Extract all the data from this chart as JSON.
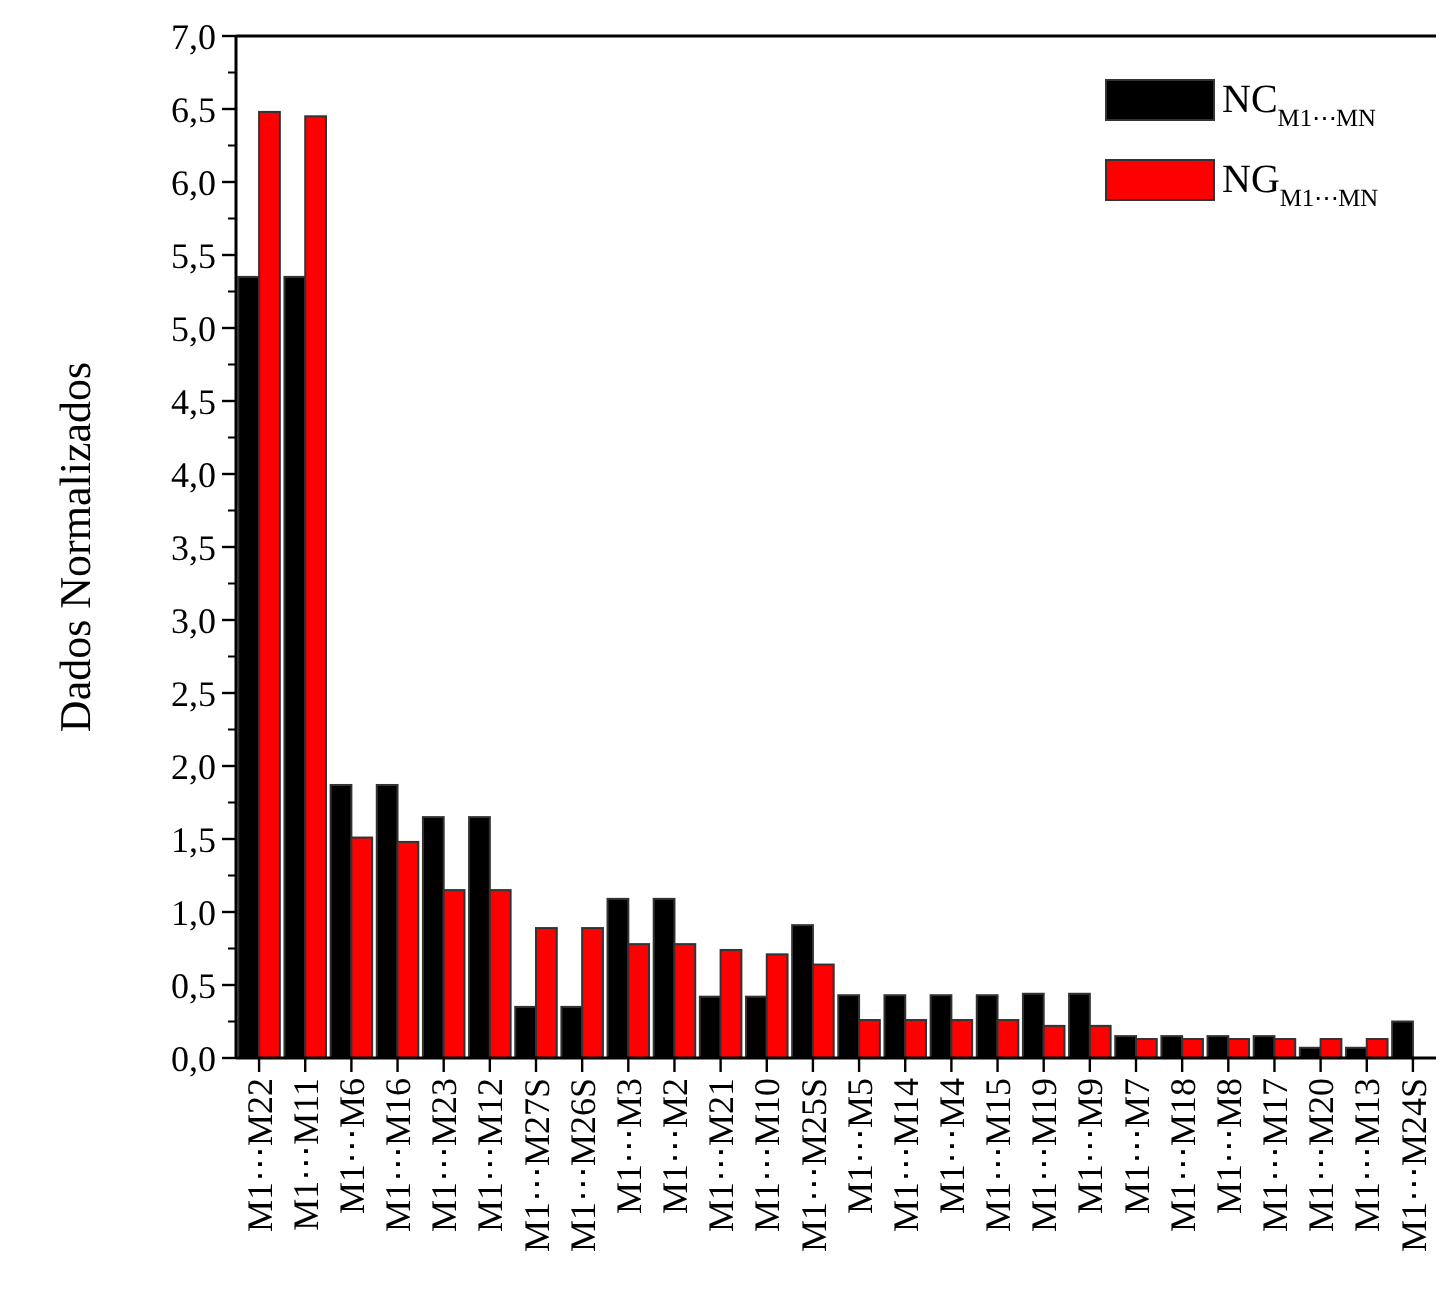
{
  "chart_data": {
    "type": "bar",
    "ylabel": "Dados Normalizados",
    "categories": [
      "M1⋯M22",
      "M1⋯M11",
      "M1⋯M6",
      "M1⋯M16",
      "M1⋯M23",
      "M1⋯M12",
      "M1⋯M27S",
      "M1⋯M26S",
      "M1⋯M3",
      "M1⋯M2",
      "M1⋯M21",
      "M1⋯M10",
      "M1⋯M25S",
      "M1⋯M5",
      "M1⋯M14",
      "M1⋯M4",
      "M1⋯M15",
      "M1⋯M19",
      "M1⋯M9",
      "M1⋯M7",
      "M1⋯M18",
      "M1⋯M8",
      "M1⋯M17",
      "M1⋯M20",
      "M1⋯M13",
      "M1⋯M24S"
    ],
    "series": [
      {
        "name": "NC$_{M1⋯MN}$",
        "color": "#000000",
        "values": [
          5.35,
          5.35,
          1.87,
          1.87,
          1.65,
          1.65,
          0.35,
          0.35,
          1.09,
          1.09,
          0.42,
          0.42,
          0.91,
          0.43,
          0.43,
          0.43,
          0.43,
          0.44,
          0.44,
          0.15,
          0.15,
          0.15,
          0.15,
          0.07,
          0.07,
          0.25
        ]
      },
      {
        "name": "NG$_{M1⋯MN}$",
        "color": "#ff0000",
        "values": [
          6.48,
          6.45,
          1.51,
          1.48,
          1.15,
          1.15,
          0.89,
          0.89,
          0.78,
          0.78,
          0.74,
          0.71,
          0.64,
          0.26,
          0.26,
          0.26,
          0.26,
          0.22,
          0.22,
          0.13,
          0.13,
          0.13,
          0.13,
          0.13,
          0.13,
          null
        ]
      }
    ],
    "ylim": [
      0,
      7
    ],
    "yticks": [
      {
        "value": 0,
        "label": "0,0"
      },
      {
        "value": 0.5,
        "label": "0,5"
      },
      {
        "value": 1,
        "label": "1,0"
      },
      {
        "value": 1.5,
        "label": "1,5"
      },
      {
        "value": 2,
        "label": "2,0"
      },
      {
        "value": 2.5,
        "label": "2,5"
      },
      {
        "value": 3,
        "label": "3,0"
      },
      {
        "value": 3.5,
        "label": "3,5"
      },
      {
        "value": 4,
        "label": "4,0"
      },
      {
        "value": 4.5,
        "label": "4,5"
      },
      {
        "value": 5,
        "label": "5,0"
      },
      {
        "value": 5.5,
        "label": "5,5"
      },
      {
        "value": 6,
        "label": "6,0"
      },
      {
        "value": 6.5,
        "label": "6,5"
      },
      {
        "value": 7,
        "label": "7,0"
      }
    ],
    "legend": "top right",
    "grid": false
  }
}
